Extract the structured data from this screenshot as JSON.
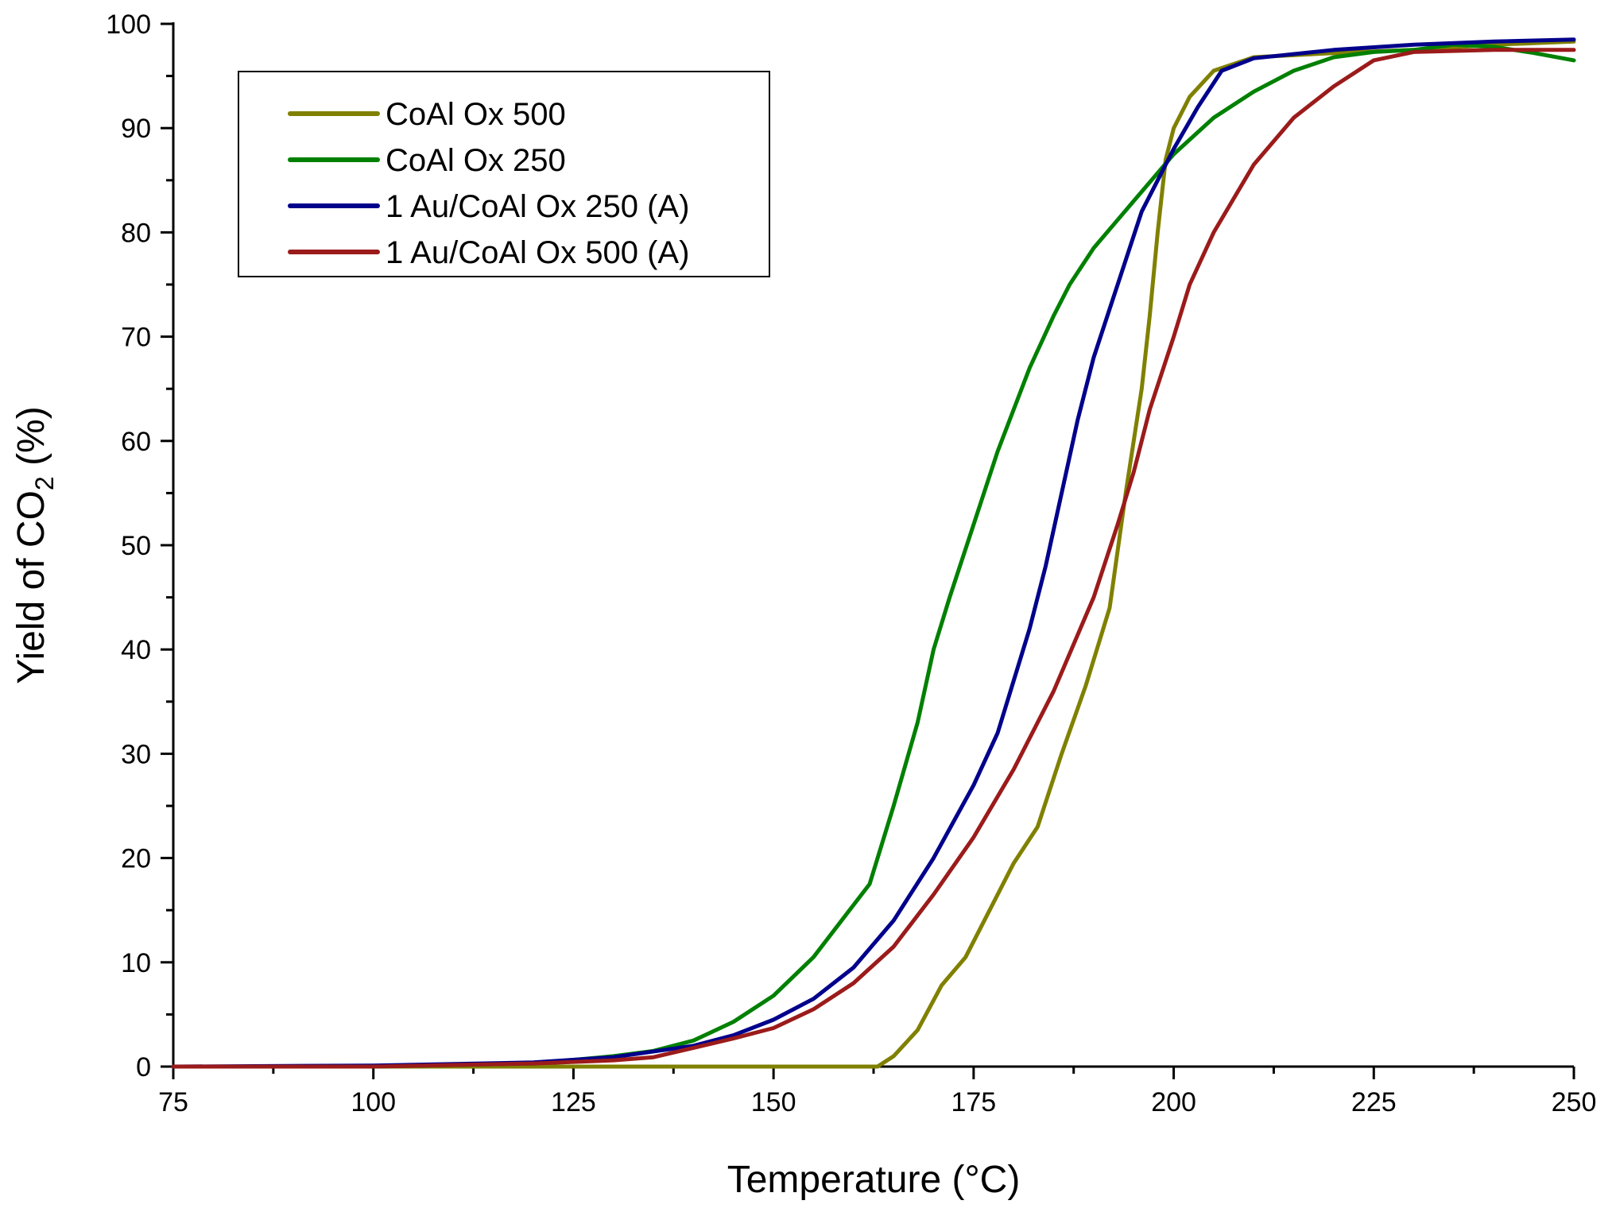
{
  "chart_data": {
    "type": "line",
    "title": "",
    "xlabel": "Temperature (°C)",
    "ylabel": {
      "main": "Yield of CO",
      "sub": "2",
      "suffix": " (%)"
    },
    "xlim": [
      75,
      250
    ],
    "ylim": [
      0,
      100
    ],
    "x_ticks": [
      75,
      100,
      125,
      150,
      175,
      200,
      225,
      250
    ],
    "y_ticks": [
      0,
      10,
      20,
      30,
      40,
      50,
      60,
      70,
      80,
      90,
      100
    ],
    "grid": false,
    "legend_position": "top-left",
    "series": [
      {
        "name": "CoAl Ox 500",
        "color": "#808000",
        "points": [
          [
            75,
            0
          ],
          [
            100,
            0
          ],
          [
            125,
            0
          ],
          [
            150,
            0
          ],
          [
            163,
            0
          ],
          [
            165,
            1
          ],
          [
            168,
            3.5
          ],
          [
            171,
            7.8
          ],
          [
            174,
            10.5
          ],
          [
            177,
            15
          ],
          [
            180,
            19.5
          ],
          [
            183,
            23
          ],
          [
            186,
            30
          ],
          [
            189,
            36.5
          ],
          [
            192,
            44
          ],
          [
            194,
            55
          ],
          [
            196,
            65
          ],
          [
            197,
            72
          ],
          [
            198,
            80
          ],
          [
            199,
            87
          ],
          [
            200,
            90
          ],
          [
            202,
            93
          ],
          [
            205,
            95.5
          ],
          [
            210,
            96.8
          ],
          [
            220,
            97.2
          ],
          [
            230,
            97.5
          ],
          [
            240,
            98
          ],
          [
            250,
            98.3
          ]
        ]
      },
      {
        "name": "CoAl Ox 250",
        "color": "#008000",
        "points": [
          [
            75,
            0
          ],
          [
            100,
            0
          ],
          [
            120,
            0.3
          ],
          [
            130,
            1
          ],
          [
            135,
            1.5
          ],
          [
            140,
            2.5
          ],
          [
            145,
            4.3
          ],
          [
            150,
            6.8
          ],
          [
            155,
            10.5
          ],
          [
            160,
            15.5
          ],
          [
            162,
            17.5
          ],
          [
            165,
            25
          ],
          [
            168,
            33
          ],
          [
            170,
            40
          ],
          [
            172,
            45
          ],
          [
            175,
            52
          ],
          [
            178,
            59
          ],
          [
            180,
            63
          ],
          [
            182,
            67
          ],
          [
            185,
            72
          ],
          [
            187,
            75
          ],
          [
            190,
            78.5
          ],
          [
            195,
            83
          ],
          [
            200,
            87.5
          ],
          [
            205,
            91
          ],
          [
            210,
            93.5
          ],
          [
            215,
            95.5
          ],
          [
            220,
            96.8
          ],
          [
            225,
            97.3
          ],
          [
            230,
            97.5
          ],
          [
            235,
            98
          ],
          [
            240,
            97.8
          ],
          [
            245,
            97.2
          ],
          [
            250,
            96.5
          ]
        ]
      },
      {
        "name": "1 Au/CoAl Ox 250 (A)",
        "color": "#00008b",
        "points": [
          [
            75,
            0
          ],
          [
            100,
            0.1
          ],
          [
            120,
            0.4
          ],
          [
            130,
            0.9
          ],
          [
            140,
            2
          ],
          [
            145,
            3
          ],
          [
            150,
            4.5
          ],
          [
            155,
            6.5
          ],
          [
            160,
            9.5
          ],
          [
            165,
            14
          ],
          [
            170,
            20
          ],
          [
            175,
            27
          ],
          [
            178,
            32
          ],
          [
            180,
            37
          ],
          [
            182,
            42
          ],
          [
            184,
            48
          ],
          [
            186,
            55
          ],
          [
            188,
            62
          ],
          [
            190,
            68
          ],
          [
            193,
            75
          ],
          [
            196,
            82
          ],
          [
            200,
            88
          ],
          [
            203,
            92
          ],
          [
            206,
            95.5
          ],
          [
            210,
            96.7
          ],
          [
            220,
            97.5
          ],
          [
            230,
            98
          ],
          [
            240,
            98.3
          ],
          [
            250,
            98.5
          ]
        ]
      },
      {
        "name": "1 Au/CoAl Ox 500 (A)",
        "color": "#9b1b1b",
        "points": [
          [
            75,
            0
          ],
          [
            100,
            0
          ],
          [
            120,
            0.3
          ],
          [
            130,
            0.6
          ],
          [
            135,
            0.9
          ],
          [
            140,
            1.8
          ],
          [
            145,
            2.7
          ],
          [
            150,
            3.7
          ],
          [
            155,
            5.5
          ],
          [
            160,
            8
          ],
          [
            165,
            11.5
          ],
          [
            170,
            16.5
          ],
          [
            175,
            22
          ],
          [
            180,
            28.5
          ],
          [
            185,
            36
          ],
          [
            190,
            45
          ],
          [
            193,
            52
          ],
          [
            195,
            57
          ],
          [
            197,
            63
          ],
          [
            200,
            70
          ],
          [
            202,
            75
          ],
          [
            205,
            80
          ],
          [
            210,
            86.5
          ],
          [
            215,
            91
          ],
          [
            220,
            94
          ],
          [
            225,
            96.5
          ],
          [
            230,
            97.3
          ],
          [
            240,
            97.5
          ],
          [
            250,
            97.5
          ]
        ]
      }
    ]
  }
}
